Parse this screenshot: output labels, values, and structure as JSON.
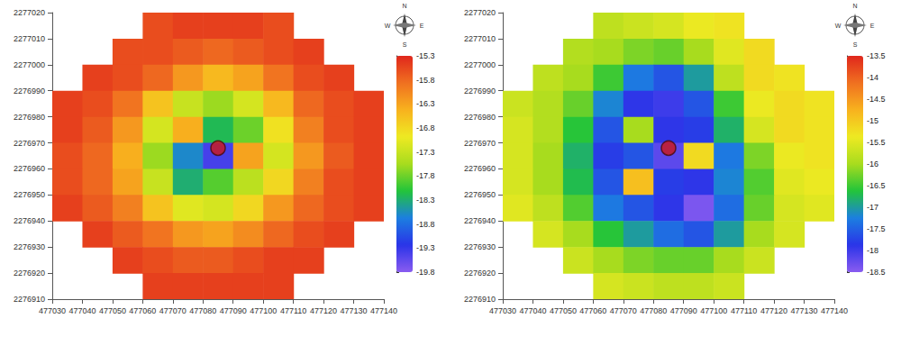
{
  "chart_data": [
    {
      "type": "heatmap",
      "x": [
        477035,
        477045,
        477055,
        477065,
        477075,
        477085,
        477095,
        477105,
        477115,
        477125,
        477135
      ],
      "y": [
        2277015,
        2277005,
        2276995,
        2276985,
        2276975,
        2276965,
        2276955,
        2276945,
        2276935,
        2276925,
        2276915
      ],
      "cells": [
        [
          null,
          null,
          null,
          -15.6,
          -15.5,
          -15.5,
          -15.5,
          -15.6,
          null,
          null,
          null
        ],
        [
          null,
          null,
          -15.6,
          -15.6,
          -15.7,
          -15.8,
          -15.7,
          -15.6,
          -15.5,
          null,
          null
        ],
        [
          null,
          -15.5,
          -15.6,
          -15.8,
          -16.2,
          -16.5,
          -16.3,
          -15.9,
          -15.6,
          -15.5,
          null
        ],
        [
          -15.5,
          -15.6,
          -15.9,
          -16.6,
          -17.3,
          -17.6,
          -17.2,
          -16.5,
          -15.8,
          -15.6,
          -15.5
        ],
        [
          -15.5,
          -15.7,
          -16.2,
          -17.2,
          -16.4,
          -18.2,
          -17.8,
          -16.9,
          -16.0,
          -15.6,
          -15.5
        ],
        [
          -15.6,
          -15.8,
          -16.4,
          -17.6,
          -18.6,
          -19.4,
          -16.3,
          -17.2,
          -16.2,
          -15.7,
          -15.5
        ],
        [
          -15.6,
          -15.8,
          -16.3,
          -17.3,
          -18.3,
          -17.9,
          -17.4,
          -16.8,
          -16.0,
          -15.6,
          -15.5
        ],
        [
          -15.5,
          -15.7,
          -16.0,
          -16.6,
          -17.1,
          -17.2,
          -16.8,
          -16.2,
          -15.8,
          -15.6,
          -15.5
        ],
        [
          null,
          -15.5,
          -15.7,
          -15.9,
          -16.2,
          -16.3,
          -16.1,
          -15.8,
          -15.6,
          -15.5,
          null
        ],
        [
          null,
          null,
          -15.5,
          -15.6,
          -15.7,
          -15.7,
          -15.6,
          -15.5,
          -15.5,
          null,
          null
        ],
        [
          null,
          null,
          null,
          -15.5,
          -15.5,
          -15.5,
          -15.5,
          -15.5,
          null,
          null,
          null
        ]
      ],
      "xlim": [
        477030,
        477140
      ],
      "xticks": [
        477030,
        477040,
        477050,
        477060,
        477070,
        477080,
        477090,
        477100,
        477110,
        477120,
        477130,
        477140
      ],
      "ylim": [
        2276910,
        2277020
      ],
      "yticks": [
        2276910,
        2276920,
        2276930,
        2276940,
        2276950,
        2276960,
        2276970,
        2276980,
        2276990,
        2277000,
        2277010,
        2277020
      ],
      "colorbar": {
        "range": [
          -19.8,
          -15.3
        ],
        "ticks": [
          -15.3,
          -15.8,
          -16.3,
          -16.8,
          -17.3,
          -17.8,
          -18.3,
          -18.8,
          -19.3,
          -19.8
        ]
      },
      "pile": {
        "x": 477085,
        "y": 2276968
      },
      "compass": [
        "N",
        "E",
        "S",
        "W"
      ],
      "grid": false
    },
    {
      "type": "heatmap",
      "x": [
        477035,
        477045,
        477055,
        477065,
        477075,
        477085,
        477095,
        477105,
        477115,
        477125,
        477135
      ],
      "y": [
        2277015,
        2277005,
        2276995,
        2276985,
        2276975,
        2276965,
        2276955,
        2276945,
        2276935,
        2276925,
        2276915
      ],
      "cells": [
        [
          null,
          null,
          null,
          -15.8,
          -15.7,
          -15.6,
          -15.4,
          -15.3,
          null,
          null,
          null
        ],
        [
          null,
          null,
          -15.9,
          -16.0,
          -16.2,
          -16.3,
          -16.0,
          -15.5,
          -15.2,
          null,
          null
        ],
        [
          null,
          -15.8,
          -16.0,
          -16.5,
          -17.3,
          -17.6,
          -17.0,
          -15.8,
          -15.2,
          -15.3,
          null
        ],
        [
          -15.7,
          -15.9,
          -16.3,
          -17.2,
          -17.9,
          -18.0,
          -17.6,
          -16.5,
          -15.4,
          -15.2,
          -15.3
        ],
        [
          -15.6,
          -15.9,
          -16.6,
          -17.6,
          -16.0,
          -17.9,
          -17.8,
          -16.8,
          -15.6,
          -15.2,
          -15.3
        ],
        [
          -15.6,
          -16.0,
          -16.8,
          -17.8,
          -17.6,
          -18.2,
          -15.2,
          -17.3,
          -16.2,
          -15.4,
          -15.3
        ],
        [
          -15.6,
          -16.0,
          -16.7,
          -17.6,
          -14.9,
          -17.8,
          -17.9,
          -17.2,
          -16.4,
          -15.5,
          -15.4
        ],
        [
          -15.5,
          -15.8,
          -16.4,
          -17.3,
          -17.6,
          -17.9,
          -18.4,
          -17.4,
          -16.3,
          -15.6,
          -15.5
        ],
        [
          null,
          -15.6,
          -16.0,
          -16.6,
          -17.0,
          -17.4,
          -17.6,
          -17.0,
          -16.0,
          -15.6,
          null
        ],
        [
          null,
          null,
          -15.7,
          -16.0,
          -16.2,
          -16.3,
          -16.3,
          -16.0,
          -15.7,
          null,
          null
        ],
        [
          null,
          null,
          null,
          -15.6,
          -15.7,
          -15.8,
          -15.8,
          -15.7,
          null,
          null,
          null
        ]
      ],
      "xlim": [
        477030,
        477140
      ],
      "xticks": [
        477030,
        477040,
        477050,
        477060,
        477070,
        477080,
        477090,
        477100,
        477110,
        477120,
        477130,
        477140
      ],
      "ylim": [
        2276910,
        2277020
      ],
      "yticks": [
        2276910,
        2276920,
        2276930,
        2276940,
        2276950,
        2276960,
        2276970,
        2276980,
        2276990,
        2277000,
        2277010,
        2277020
      ],
      "colorbar": {
        "range": [
          -18.5,
          -13.5
        ],
        "ticks": [
          -13.5,
          -14,
          -14.5,
          -15,
          -15.5,
          -16,
          -16.5,
          -17,
          -17.5,
          -18,
          -18.5
        ]
      },
      "pile": {
        "x": 477085,
        "y": 2276968
      },
      "compass": [
        "N",
        "E",
        "S",
        "W"
      ],
      "grid": false
    }
  ]
}
